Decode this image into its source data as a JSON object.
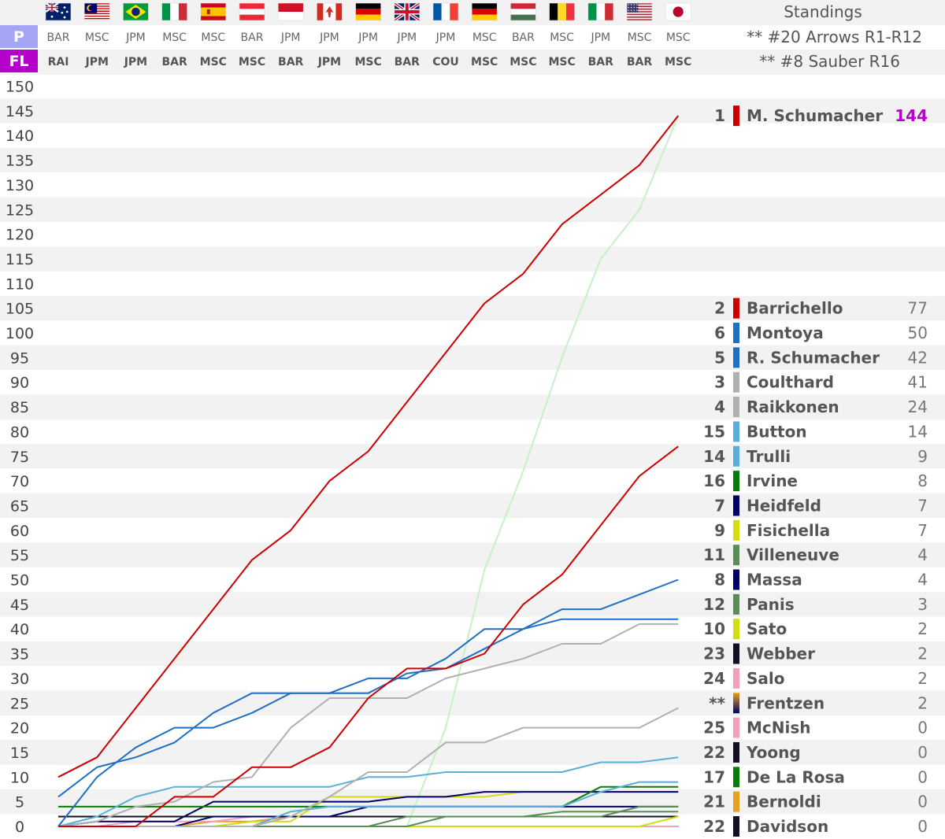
{
  "header": {
    "standings_title": "Standings",
    "pole_label": "P",
    "fastest_lap_label": "FL",
    "note_pole": "** #20 Arrows R1-R12",
    "note_fl": "** #8 Sauber R16"
  },
  "races": [
    {
      "flag": "australia",
      "pole": "BAR",
      "fl": "RAI"
    },
    {
      "flag": "malaysia",
      "pole": "MSC",
      "fl": "JPM"
    },
    {
      "flag": "brazil",
      "pole": "JPM",
      "fl": "JPM"
    },
    {
      "flag": "italy",
      "pole": "MSC",
      "fl": "BAR"
    },
    {
      "flag": "spain",
      "pole": "MSC",
      "fl": "MSC"
    },
    {
      "flag": "austria",
      "pole": "BAR",
      "fl": "MSC"
    },
    {
      "flag": "monaco",
      "pole": "JPM",
      "fl": "BAR"
    },
    {
      "flag": "canada",
      "pole": "JPM",
      "fl": "JPM"
    },
    {
      "flag": "germany",
      "pole": "JPM",
      "fl": "MSC"
    },
    {
      "flag": "united-kingdom",
      "pole": "JPM",
      "fl": "BAR"
    },
    {
      "flag": "france",
      "pole": "JPM",
      "fl": "COU"
    },
    {
      "flag": "germany",
      "pole": "MSC",
      "fl": "MSC"
    },
    {
      "flag": "hungary",
      "pole": "BAR",
      "fl": "MSC"
    },
    {
      "flag": "belgium",
      "pole": "MSC",
      "fl": "MSC"
    },
    {
      "flag": "italy",
      "pole": "JPM",
      "fl": "BAR"
    },
    {
      "flag": "united-states",
      "pole": "MSC",
      "fl": "BAR"
    },
    {
      "flag": "japan",
      "pole": "MSC",
      "fl": "MSC"
    }
  ],
  "colors": {
    "pole_bg": "#a5a5f5",
    "fl_bg": "#b400c8",
    "leader_points": "#b400c8",
    "band": "#f2f2f2"
  },
  "chart_data": {
    "type": "line",
    "ylim": [
      0,
      150
    ],
    "yticks": [
      0,
      5,
      10,
      15,
      20,
      25,
      30,
      35,
      40,
      45,
      50,
      55,
      60,
      65,
      70,
      75,
      80,
      85,
      90,
      95,
      100,
      105,
      110,
      115,
      120,
      125,
      130,
      135,
      140,
      145,
      150
    ],
    "x": [
      1,
      2,
      3,
      4,
      5,
      6,
      7,
      8,
      9,
      10,
      11,
      12,
      13,
      14,
      15,
      16,
      17
    ],
    "series": [
      {
        "name": "M. Schumacher",
        "color": "#cc0000",
        "values": [
          10,
          14,
          24,
          34,
          44,
          54,
          60,
          70,
          76,
          86,
          96,
          106,
          112,
          122,
          128,
          134,
          144
        ]
      },
      {
        "name": "Barrichello",
        "color": "#cc0000",
        "values": [
          0,
          0,
          0,
          6,
          6,
          12,
          12,
          16,
          26,
          32,
          32,
          35,
          45,
          51,
          61,
          71,
          77
        ]
      },
      {
        "name": "Montoya",
        "color": "#1f6fc2",
        "values": [
          6,
          12,
          14,
          17,
          23,
          27,
          27,
          27,
          30,
          30,
          34,
          40,
          40,
          44,
          44,
          47,
          50
        ]
      },
      {
        "name": "R. Schumacher",
        "color": "#1f6fc2",
        "values": [
          0,
          10,
          16,
          20,
          20,
          23,
          27,
          27,
          27,
          31,
          32,
          36,
          40,
          42,
          42,
          42,
          42
        ]
      },
      {
        "name": "Coulthard",
        "color": "#b0b0b0",
        "values": [
          0,
          1,
          4,
          5,
          9,
          10,
          20,
          26,
          26,
          26,
          30,
          32,
          34,
          37,
          37,
          41,
          41
        ]
      },
      {
        "name": "Raikkonen",
        "color": "#b0b0b0",
        "values": [
          0,
          0,
          0,
          0,
          0,
          0,
          2,
          6,
          11,
          11,
          17,
          17,
          20,
          20,
          20,
          20,
          24
        ]
      },
      {
        "name": "Button",
        "color": "#5aaedc",
        "values": [
          0,
          2,
          6,
          8,
          8,
          8,
          8,
          8,
          10,
          10,
          11,
          11,
          11,
          11,
          13,
          13,
          14
        ]
      },
      {
        "name": "Trulli",
        "color": "#5aaedc",
        "values": [
          0,
          0,
          0,
          0,
          0,
          0,
          3,
          4,
          4,
          4,
          4,
          4,
          4,
          4,
          7,
          9,
          9
        ]
      },
      {
        "name": "Irvine",
        "color": "#0a7a0a",
        "values": [
          4,
          4,
          4,
          4,
          4,
          4,
          4,
          4,
          4,
          4,
          4,
          4,
          4,
          4,
          8,
          8,
          8
        ]
      },
      {
        "name": "Heidfeld",
        "color": "#000066",
        "values": [
          0,
          1,
          1,
          1,
          5,
          5,
          5,
          5,
          5,
          6,
          6,
          7,
          7,
          7,
          7,
          7,
          7
        ]
      },
      {
        "name": "Fisichella",
        "color": "#d4dc14",
        "values": [
          0,
          0,
          0,
          0,
          0,
          1,
          1,
          6,
          6,
          6,
          6,
          6,
          7,
          7,
          7,
          7,
          7
        ]
      },
      {
        "name": "Villeneuve",
        "color": "#5a8c5a",
        "values": [
          0,
          0,
          0,
          0,
          0,
          0,
          0,
          0,
          0,
          0,
          2,
          2,
          2,
          2,
          2,
          4,
          4
        ]
      },
      {
        "name": "Massa",
        "color": "#000066",
        "values": [
          0,
          0,
          0,
          0,
          2,
          2,
          2,
          2,
          4,
          4,
          4,
          4,
          4,
          4,
          4,
          4,
          4
        ]
      },
      {
        "name": "Panis",
        "color": "#5a8c5a",
        "values": [
          0,
          0,
          0,
          0,
          0,
          0,
          0,
          0,
          0,
          2,
          2,
          2,
          2,
          3,
          3,
          3,
          3
        ]
      },
      {
        "name": "Sato",
        "color": "#d4dc14",
        "values": [
          0,
          0,
          0,
          0,
          0,
          0,
          0,
          0,
          0,
          0,
          0,
          0,
          0,
          0,
          0,
          0,
          2
        ]
      },
      {
        "name": "Webber",
        "color": "#111122",
        "values": [
          2,
          2,
          2,
          2,
          2,
          2,
          2,
          2,
          2,
          2,
          2,
          2,
          2,
          2,
          2,
          2,
          2
        ]
      },
      {
        "name": "Salo",
        "color": "#f4a0b8",
        "values": [
          0,
          0,
          1,
          1,
          1,
          2,
          2,
          2,
          2,
          2,
          2,
          2,
          2,
          2,
          2,
          2,
          2
        ]
      },
      {
        "name": "Frentzen",
        "color": "#e8a020",
        "values": [
          0,
          0,
          0,
          0,
          1,
          1,
          2,
          2,
          2,
          2,
          2,
          2,
          2,
          2,
          2,
          2,
          2
        ]
      },
      {
        "name": "McNish",
        "color": "#f4a0b8",
        "values": [
          0,
          0,
          0,
          0,
          0,
          0,
          0,
          0,
          0,
          0,
          0,
          0,
          0,
          0,
          0,
          0,
          0
        ]
      },
      {
        "name": "Yoong",
        "color": "#111122",
        "values": [
          0,
          0,
          0,
          0,
          0,
          0,
          0,
          0,
          0,
          0,
          0,
          0,
          0,
          0,
          0,
          0,
          0
        ]
      },
      {
        "name": "De La Rosa",
        "color": "#0a7a0a",
        "values": [
          0,
          0,
          0,
          0,
          0,
          0,
          0,
          0,
          0,
          0,
          0,
          0,
          0,
          0,
          0,
          0,
          0
        ]
      },
      {
        "name": "Bernoldi",
        "color": "#e8a020",
        "values": [
          0,
          0,
          0,
          0,
          0,
          0,
          0,
          0,
          0,
          0,
          0,
          0,
          0,
          0,
          0,
          0,
          0
        ]
      },
      {
        "name": "Davidson",
        "color": "#111122",
        "values": [
          0,
          0,
          0,
          0,
          0,
          0,
          0,
          0,
          0,
          0,
          0,
          0,
          0,
          0,
          0,
          0,
          0
        ]
      }
    ],
    "projection": {
      "color": "#c4f2c4",
      "values": [
        0,
        0,
        0,
        0,
        0,
        0,
        0,
        0,
        0,
        0,
        20,
        52,
        72,
        95,
        115,
        125,
        144
      ]
    },
    "grid": "alternating-bands"
  },
  "standings": [
    {
      "pos": "1",
      "name": "M. Schumacher",
      "points": "144",
      "color": "#cc0000",
      "value": 144,
      "leader": true
    },
    {
      "pos": "2",
      "name": "Barrichello",
      "points": "77",
      "color": "#cc0000",
      "value": 105
    },
    {
      "pos": "6",
      "name": "Montoya",
      "points": "50",
      "color": "#1f6fc2",
      "value": 100
    },
    {
      "pos": "5",
      "name": "R. Schumacher",
      "points": "42",
      "color": "#1f6fc2",
      "value": 95
    },
    {
      "pos": "3",
      "name": "Coulthard",
      "points": "41",
      "color": "#b0b0b0",
      "value": 90
    },
    {
      "pos": "4",
      "name": "Raikkonen",
      "points": "24",
      "color": "#b0b0b0",
      "value": 85
    },
    {
      "pos": "15",
      "name": "Button",
      "points": "14",
      "color": "#5aaedc",
      "value": 80
    },
    {
      "pos": "14",
      "name": "Trulli",
      "points": "9",
      "color": "#5aaedc",
      "value": 75
    },
    {
      "pos": "16",
      "name": "Irvine",
      "points": "8",
      "color": "#0a7a0a",
      "value": 70
    },
    {
      "pos": "7",
      "name": "Heidfeld",
      "points": "7",
      "color": "#000066",
      "value": 65
    },
    {
      "pos": "9",
      "name": "Fisichella",
      "points": "7",
      "color": "#d4dc14",
      "value": 60
    },
    {
      "pos": "11",
      "name": "Villeneuve",
      "points": "4",
      "color": "#5a8c5a",
      "value": 55
    },
    {
      "pos": "8",
      "name": "Massa",
      "points": "4",
      "color": "#000066",
      "value": 50
    },
    {
      "pos": "12",
      "name": "Panis",
      "points": "3",
      "color": "#5a8c5a",
      "value": 45
    },
    {
      "pos": "10",
      "name": "Sato",
      "points": "2",
      "color": "#d4dc14",
      "value": 40
    },
    {
      "pos": "23",
      "name": "Webber",
      "points": "2",
      "color": "#111122",
      "value": 35
    },
    {
      "pos": "24",
      "name": "Salo",
      "points": "2",
      "color": "#f4a0b8",
      "value": 30
    },
    {
      "pos": "**",
      "name": "Frentzen",
      "points": "2",
      "color": "#e8a020",
      "value": 25,
      "gradient": true
    },
    {
      "pos": "25",
      "name": "McNish",
      "points": "0",
      "color": "#f4a0b8",
      "value": 20
    },
    {
      "pos": "22",
      "name": "Yoong",
      "points": "0",
      "color": "#111122",
      "value": 15
    },
    {
      "pos": "17",
      "name": "De La Rosa",
      "points": "0",
      "color": "#0a7a0a",
      "value": 10
    },
    {
      "pos": "21",
      "name": "Bernoldi",
      "points": "0",
      "color": "#e8a020",
      "value": 5
    },
    {
      "pos": "22",
      "name": "Davidson",
      "points": "0",
      "color": "#111122",
      "value": 0
    }
  ]
}
